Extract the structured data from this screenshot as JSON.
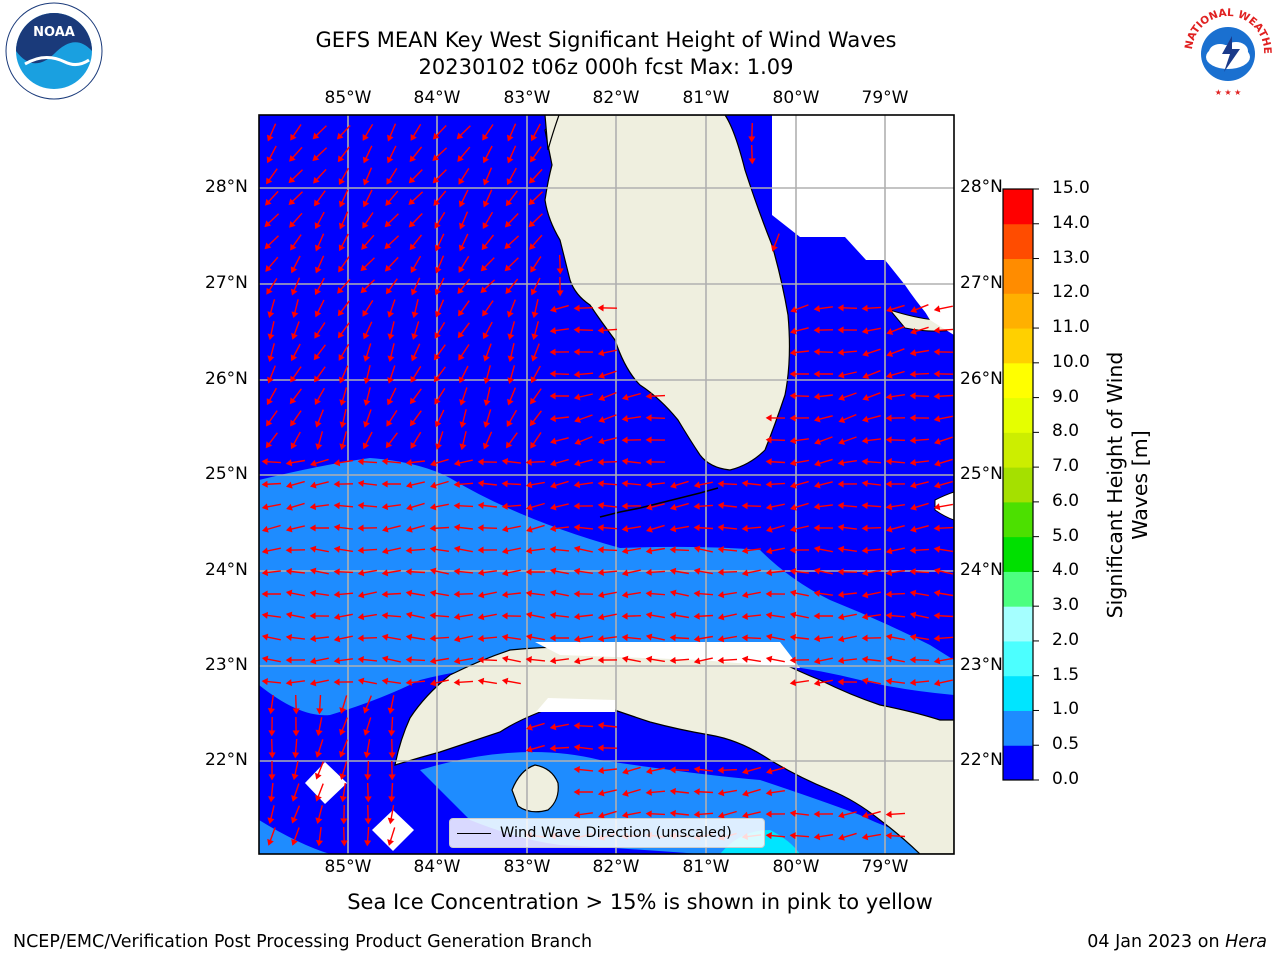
{
  "title": {
    "line1": "GEFS MEAN Key West Significant Height of Wind Waves",
    "line2": "20230102 t06z 000h fcst   Max: 1.09"
  },
  "lon_ticks": [
    "85°W",
    "84°W",
    "83°W",
    "82°W",
    "81°W",
    "80°W",
    "79°W"
  ],
  "lat_ticks": [
    "28°N",
    "27°N",
    "26°N",
    "25°N",
    "24°N",
    "23°N",
    "22°N"
  ],
  "colorbar": {
    "title": "Significant Height of Wind Waves [m]",
    "levels": [
      "0.0",
      "0.5",
      "1.0",
      "1.5",
      "2.0",
      "3.0",
      "4.0",
      "5.0",
      "6.0",
      "7.0",
      "8.0",
      "9.0",
      "10.0",
      "11.0",
      "12.0",
      "13.0",
      "14.0",
      "15.0"
    ],
    "colors": [
      "#0000ff",
      "#1e8cff",
      "#00e5ff",
      "#4cffff",
      "#a5ffff",
      "#4cff80",
      "#00e000",
      "#4ce000",
      "#a5e000",
      "#ccee00",
      "#e5ff00",
      "#ffff00",
      "#ffd000",
      "#ffb000",
      "#ff8c00",
      "#ff4c00",
      "#ff0000"
    ]
  },
  "legend": {
    "label": "Wind Wave Direction (unscaled)"
  },
  "subtitle": "Sea Ice Concentration > 15% is shown in pink to yellow",
  "footer": {
    "left": "NCEP/EMC/Verification Post Processing Product Generation Branch",
    "date": "04 Jan 2023 on",
    "host": "Hera"
  },
  "logos": {
    "noaa": "NOAA",
    "nws": "NATIONAL WEATHER SERVICE"
  },
  "colors": {
    "land": "#efefdf",
    "ocean_low": "#0000ff",
    "ocean_mid": "#1e8cff",
    "ocean_high": "#00e5ff",
    "arrow": "#ff0000",
    "grid": "#b0b0b0"
  }
}
